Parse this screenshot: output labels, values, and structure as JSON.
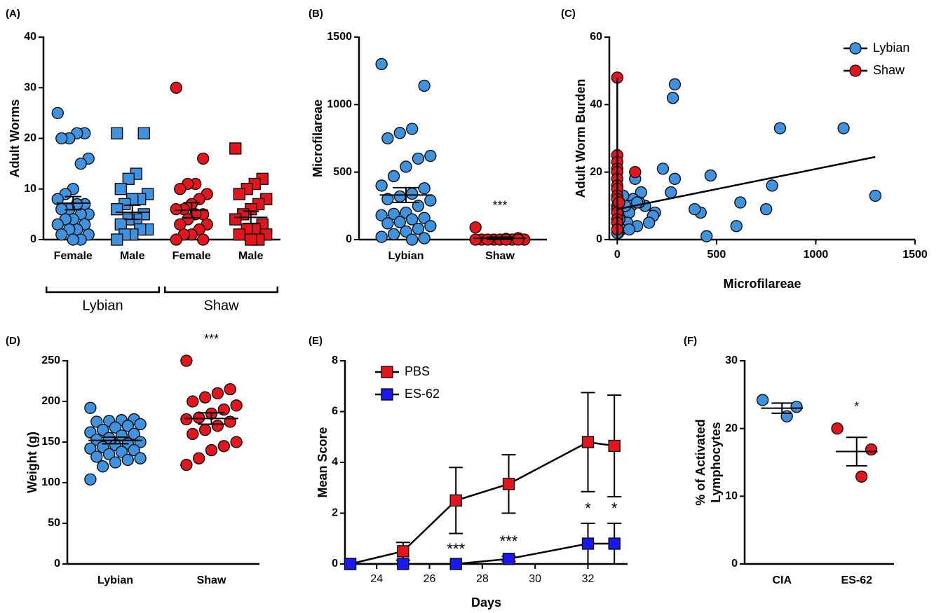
{
  "chart_data": [
    {
      "type": "strip",
      "panel_label": "(A)",
      "ylabel": [
        "Adult Worms"
      ],
      "categories": [
        "Female",
        "Male",
        "Female",
        "Male"
      ],
      "group_labels": [
        "Lybian",
        "Shaw"
      ],
      "colors": [
        "#3f92de",
        "#3f92de",
        "#e3161e",
        "#e3161e"
      ],
      "markers": [
        "circle",
        "square",
        "circle",
        "square"
      ],
      "values": [
        [
          25,
          21,
          21,
          20,
          20,
          16,
          15,
          10,
          9,
          8,
          7,
          7,
          6,
          6,
          5,
          5,
          4,
          4,
          3,
          3,
          2,
          2,
          1,
          1,
          0,
          0
        ],
        [
          21,
          21,
          13,
          12,
          10,
          9,
          8,
          8,
          7,
          6,
          5,
          4,
          4,
          3,
          2,
          2,
          1,
          1,
          0
        ],
        [
          30,
          16,
          11,
          11,
          10,
          9,
          8,
          7,
          6,
          6,
          5,
          5,
          4,
          3,
          3,
          2,
          1,
          1,
          0,
          0
        ],
        [
          18,
          12,
          11,
          10,
          9,
          8,
          7,
          6,
          5,
          4,
          3,
          2,
          2,
          1,
          1,
          0,
          0
        ]
      ],
      "means": [
        7.2,
        5.4,
        5.8,
        4.4
      ],
      "sems": [
        1.3,
        1.4,
        1.5,
        1.2
      ],
      "ylim": [
        0,
        40
      ],
      "yticks": [
        0,
        10,
        20,
        30,
        40
      ]
    },
    {
      "type": "strip",
      "panel_label": "(B)",
      "ylabel": [
        "Microfilareae"
      ],
      "categories": [
        "Lybian",
        "Shaw"
      ],
      "colors": [
        "#3f92de",
        "#e3161e"
      ],
      "markers": [
        "circle",
        "circle"
      ],
      "values": [
        [
          1300,
          1140,
          820,
          790,
          750,
          620,
          600,
          540,
          470,
          400,
          380,
          340,
          320,
          300,
          290,
          250,
          200,
          190,
          180,
          160,
          150,
          130,
          120,
          100,
          80,
          60,
          40,
          20,
          10,
          0
        ],
        [
          90,
          10,
          5,
          0,
          0,
          0,
          0,
          0,
          0,
          0,
          0,
          0
        ]
      ],
      "means": [
        330,
        10
      ],
      "sems": [
        55,
        8
      ],
      "annotations": [
        {
          "category": 1,
          "text": "***"
        }
      ],
      "ylim": [
        0,
        1500
      ],
      "yticks": [
        0,
        500,
        1000,
        1500
      ]
    },
    {
      "type": "scatter",
      "panel_label": "(C)",
      "ylabel": [
        "Adult Worm Burden"
      ],
      "xlabel": "Microfilareae",
      "series": [
        {
          "name": "Lybian",
          "color": "#3f92de",
          "x": [
            1300,
            1140,
            820,
            780,
            750,
            620,
            600,
            470,
            450,
            420,
            390,
            290,
            280,
            290,
            270,
            230,
            190,
            180,
            160,
            140,
            120,
            110,
            90,
            100,
            80,
            70,
            60,
            50,
            40,
            30,
            20,
            10,
            5,
            0,
            60,
            100
          ],
          "y": [
            13,
            33,
            33,
            16,
            9,
            11,
            4,
            19,
            1,
            8,
            9,
            46,
            42,
            18,
            14,
            21,
            8,
            7,
            5,
            10,
            14,
            11,
            18,
            4,
            12,
            10,
            8,
            5,
            10,
            13,
            3,
            6,
            2,
            2,
            3,
            11
          ]
        },
        {
          "name": "Shaw",
          "color": "#e3161e",
          "x": [
            0,
            0,
            0,
            0,
            0,
            0,
            0,
            0,
            0,
            0,
            0,
            0,
            0,
            0,
            0,
            0,
            90,
            10
          ],
          "y": [
            48,
            25,
            23,
            21,
            20,
            18,
            16,
            15,
            13,
            12,
            10,
            9,
            8,
            6,
            5,
            3,
            20,
            11
          ]
        }
      ],
      "fits": [
        {
          "x": [
            0,
            1300
          ],
          "y": [
            9,
            24.5
          ]
        },
        {
          "x": [
            0,
            0
          ],
          "y": [
            0,
            48
          ]
        }
      ],
      "legend": "upper right",
      "xlim": [
        -40,
        1500
      ],
      "xticks": [
        0,
        500,
        1000,
        1500
      ],
      "ylim": [
        0,
        60
      ],
      "yticks": [
        0,
        20,
        40,
        60
      ]
    },
    {
      "type": "strip",
      "panel_label": "(D)",
      "ylabel": [
        "Weight (g)"
      ],
      "categories": [
        "Lybian",
        "Shaw"
      ],
      "colors": [
        "#3f92de",
        "#e3161e"
      ],
      "markers": [
        "circle",
        "circle"
      ],
      "values": [
        [
          192,
          178,
          177,
          176,
          175,
          172,
          170,
          168,
          165,
          162,
          160,
          158,
          155,
          153,
          150,
          148,
          146,
          144,
          142,
          140,
          138,
          135,
          132,
          130,
          128,
          125,
          120,
          104
        ],
        [
          250,
          215,
          210,
          205,
          200,
          195,
          190,
          185,
          180,
          178,
          175,
          170,
          165,
          160,
          150,
          145,
          140,
          130,
          122
        ]
      ],
      "means": [
        152,
        179
      ],
      "sems": [
        4,
        7
      ],
      "annotations": [
        {
          "category": 1,
          "text": "***"
        }
      ],
      "ylim": [
        0,
        250
      ],
      "yticks": [
        0,
        50,
        100,
        150,
        200,
        250
      ]
    },
    {
      "type": "line",
      "panel_label": "(E)",
      "ylabel": [
        "Mean Score"
      ],
      "xlabel": "Days",
      "x": [
        23,
        25,
        27,
        29,
        32,
        33
      ],
      "series": [
        {
          "name": "PBS",
          "color": "#e3161e",
          "values": [
            0,
            0.5,
            2.5,
            3.15,
            4.8,
            4.65
          ],
          "errors": [
            0,
            0.35,
            1.3,
            1.15,
            1.95,
            2.0
          ]
        },
        {
          "name": "ES-62",
          "color": "#1a1af0",
          "values": [
            0,
            0,
            0,
            0.2,
            0.8,
            0.8
          ],
          "errors": [
            0,
            0,
            0,
            0.1,
            0.8,
            0.8
          ]
        }
      ],
      "annotations": [
        {
          "x": 27,
          "text": "***"
        },
        {
          "x": 29,
          "text": "***"
        },
        {
          "x": 32,
          "text": "*"
        },
        {
          "x": 33,
          "text": "*"
        }
      ],
      "legend": "upper left",
      "xlim": [
        22.8,
        33.5
      ],
      "xticks": [
        24,
        26,
        28,
        30,
        32
      ],
      "ylim": [
        0,
        8
      ],
      "yticks": [
        0,
        2,
        4,
        6,
        8
      ]
    },
    {
      "type": "strip",
      "panel_label": "(F)",
      "ylabel": [
        "% of Activated",
        "Lymphocytes"
      ],
      "categories": [
        "CIA",
        "ES-62"
      ],
      "colors": [
        "#3f92de",
        "#e3161e"
      ],
      "markers": [
        "circle",
        "circle"
      ],
      "values": [
        [
          24.2,
          23.2,
          21.8
        ],
        [
          20,
          16.9,
          12.9
        ]
      ],
      "means": [
        23,
        16.6
      ],
      "sems": [
        0.75,
        2.1
      ],
      "annotations": [
        {
          "category": 1,
          "text": "*"
        }
      ],
      "ylim": [
        0,
        30
      ],
      "yticks": [
        0,
        10,
        20,
        30
      ]
    }
  ]
}
